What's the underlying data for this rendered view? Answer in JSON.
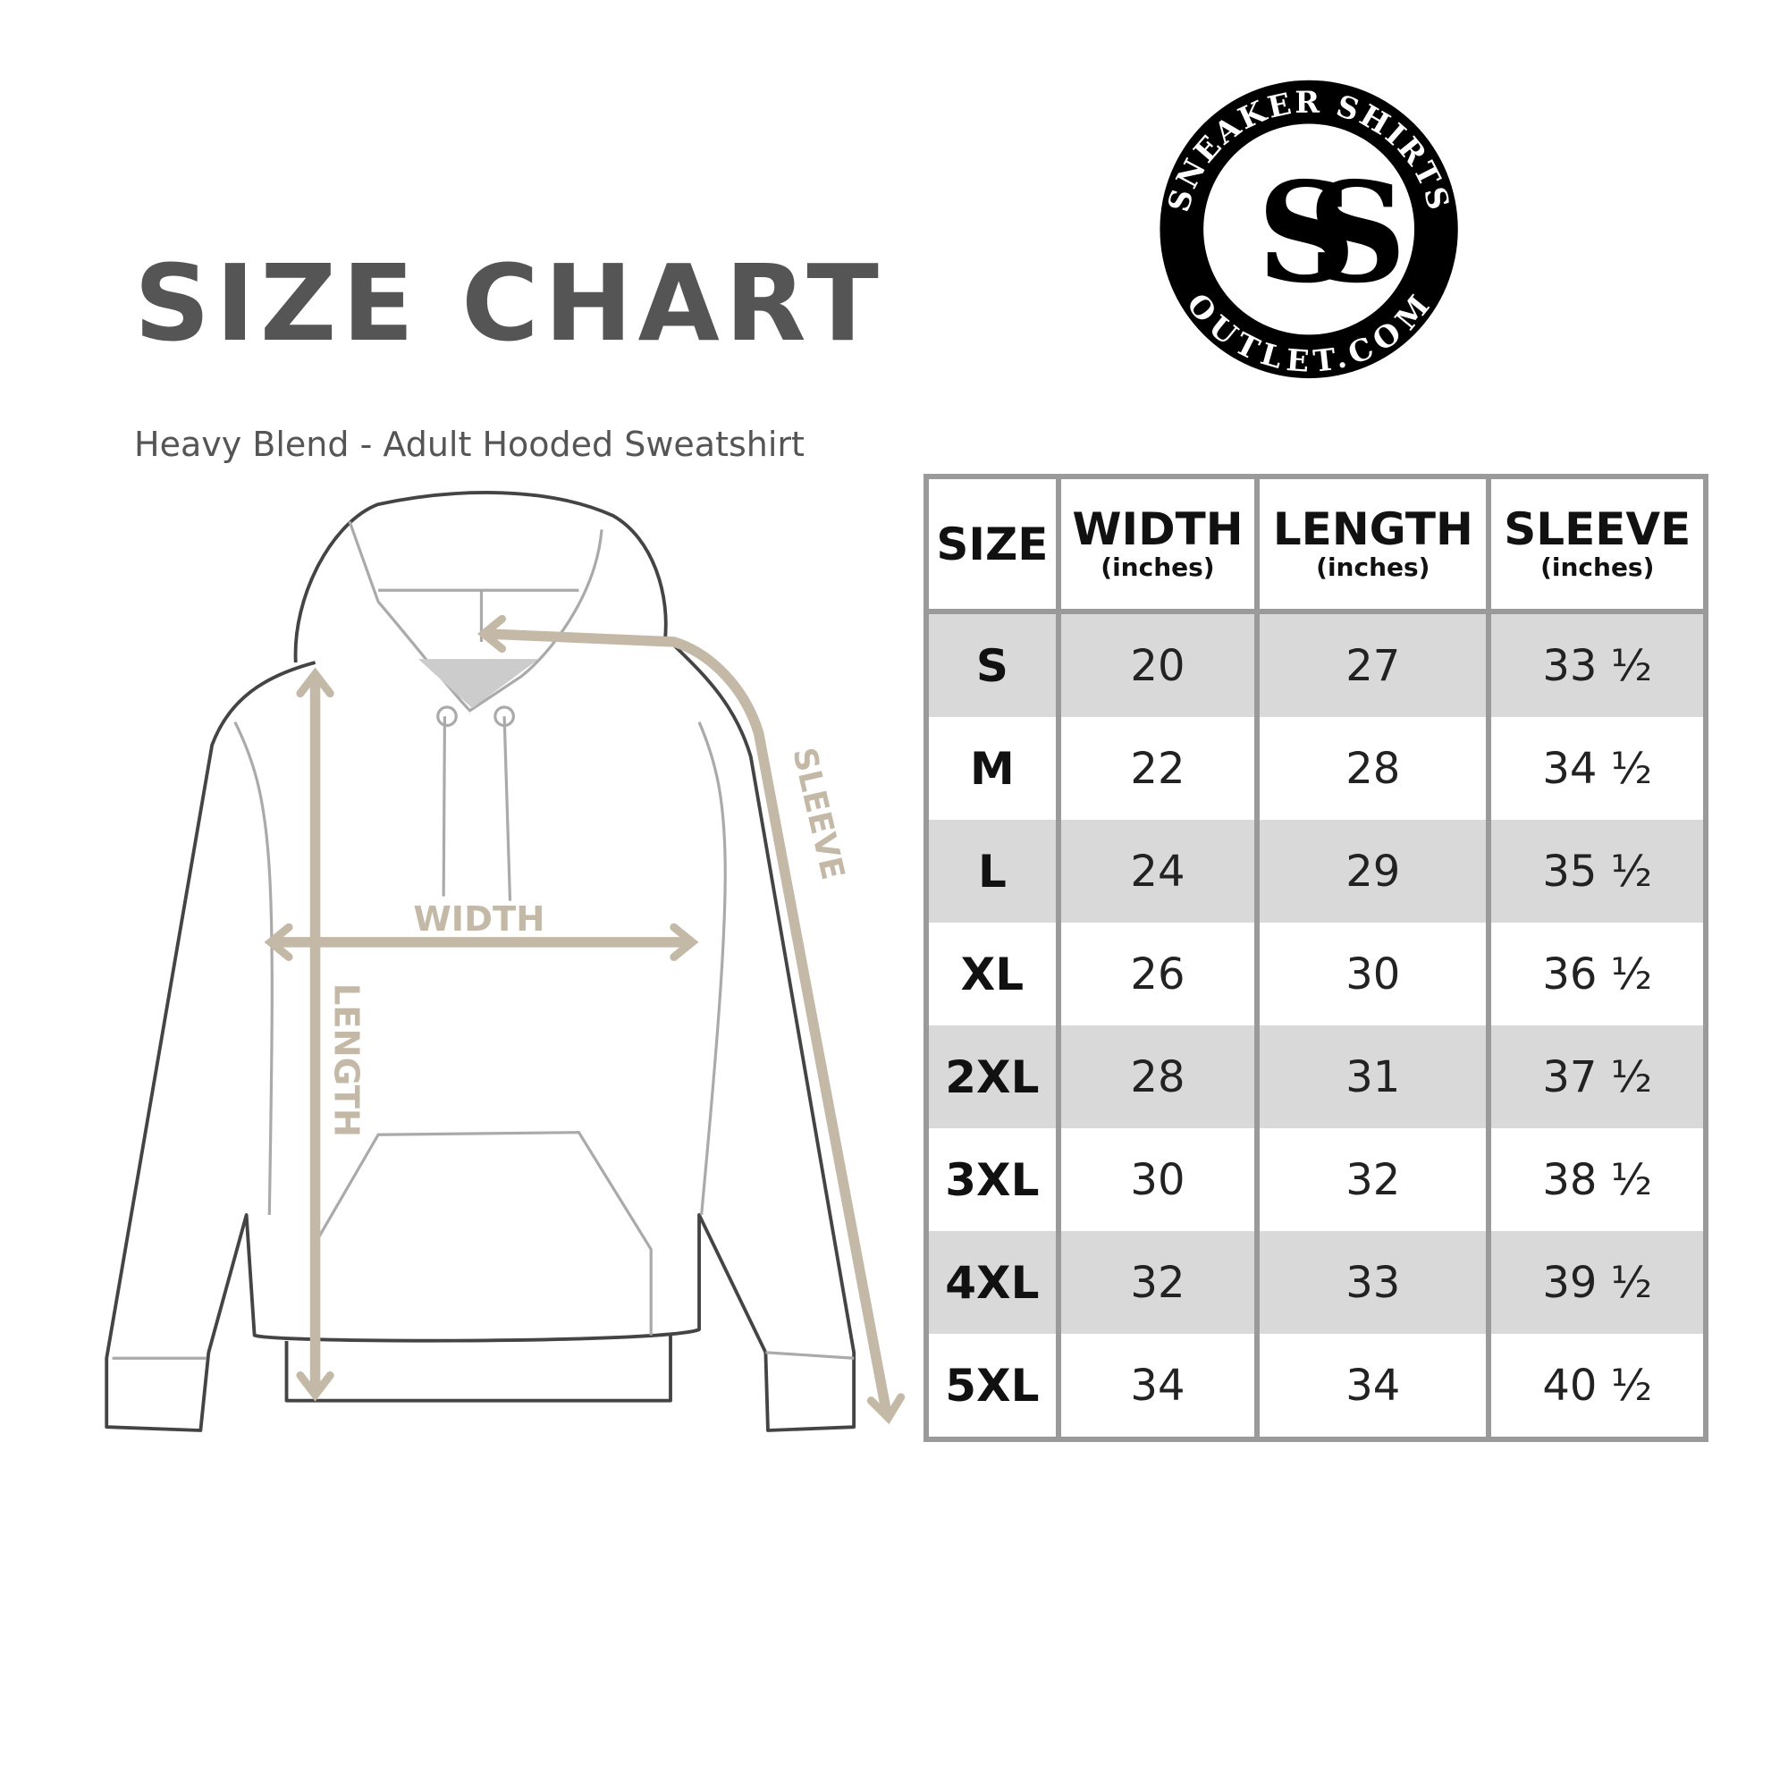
{
  "header": {
    "title": "SIZE CHART",
    "subtitle": "Heavy Blend - Adult Hooded Sweatshirt"
  },
  "logo": {
    "top_text": "SNEAKER SHIRTS",
    "bottom_text": "OUTLET.COM",
    "monogram": "SS"
  },
  "diagram": {
    "labels": {
      "width": "WIDTH",
      "length": "LENGTH",
      "sleeve": "SLEEVE"
    },
    "arrow_color": "#c4b8a6"
  },
  "table": {
    "headers": [
      {
        "label": "SIZE",
        "unit": ""
      },
      {
        "label": "WIDTH",
        "unit": "(inches)"
      },
      {
        "label": "LENGTH",
        "unit": "(inches)"
      },
      {
        "label": "SLEEVE",
        "unit": "(inches)"
      }
    ],
    "rows": [
      [
        "S",
        "20",
        "27",
        "33 ½"
      ],
      [
        "M",
        "22",
        "28",
        "34 ½"
      ],
      [
        "L",
        "24",
        "29",
        "35 ½"
      ],
      [
        "XL",
        "26",
        "30",
        "36 ½"
      ],
      [
        "2XL",
        "28",
        "31",
        "37 ½"
      ],
      [
        "3XL",
        "30",
        "32",
        "38 ½"
      ],
      [
        "4XL",
        "32",
        "33",
        "39 ½"
      ],
      [
        "5XL",
        "34",
        "34",
        "40 ½"
      ]
    ]
  }
}
